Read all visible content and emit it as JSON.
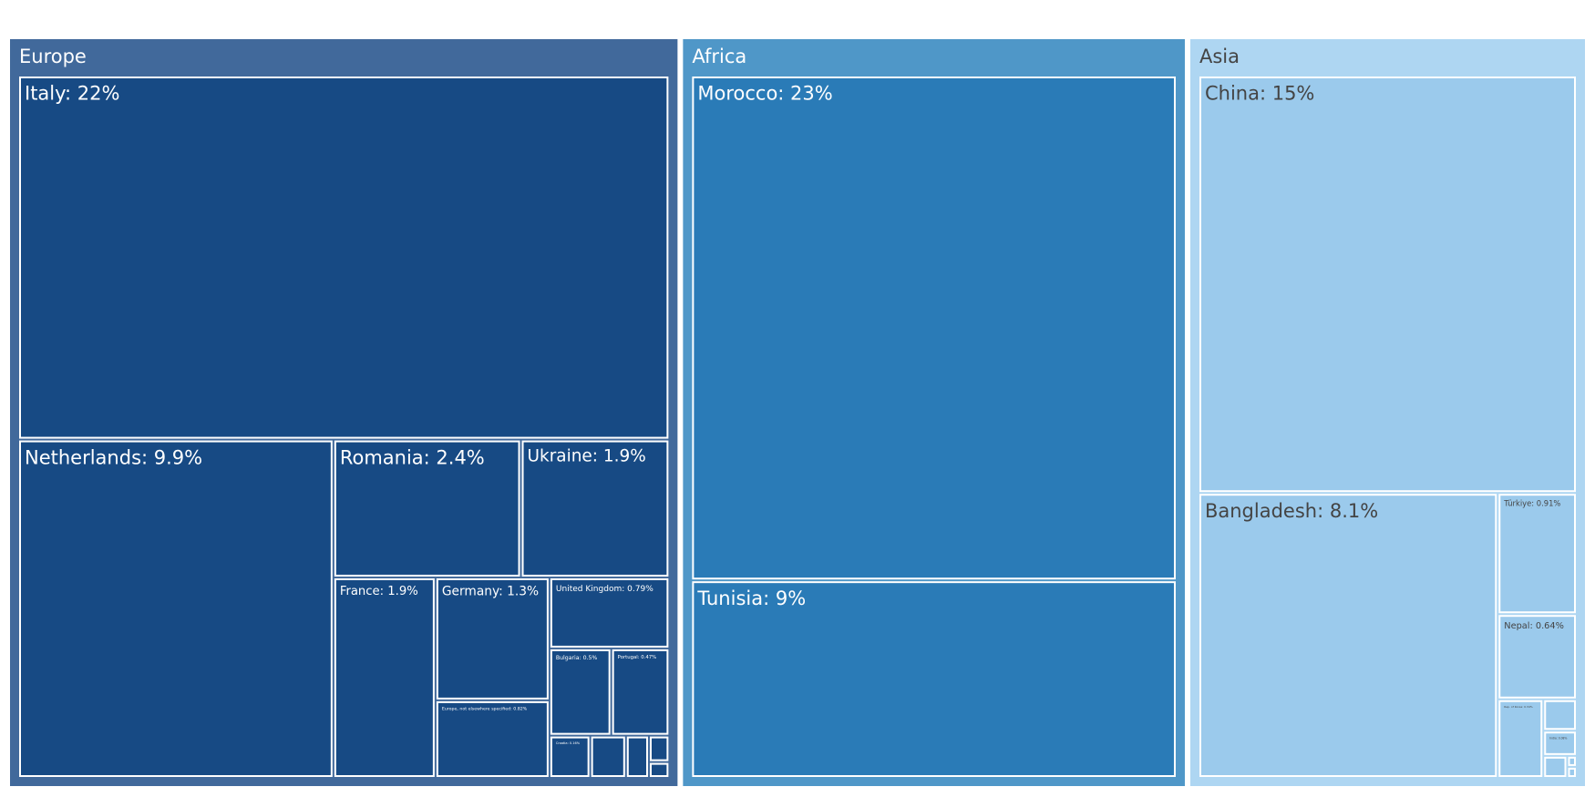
{
  "chart_data": {
    "type": "treemap",
    "groups": [
      {
        "name": "Europe",
        "header_color": "#41699b",
        "color": "#174a84",
        "text_color": "#ffffff",
        "values": [
          22,
          9.9,
          2.4,
          1.9,
          1.9,
          1.3,
          0.82,
          0.79,
          0.5,
          0.47,
          0.16,
          0.14,
          0.09,
          0.05,
          0.03
        ],
        "value_labels": [
          "Italy: 22%",
          "Netherlands: 9.9%",
          "Romania: 2.4%",
          "Ukraine: 1.9%",
          "France: 1.9%",
          "Germany: 1.3%",
          "Europe, not elsewhere specified: 0.82%",
          "United Kingdom: 0.79%",
          "Bulgaria: 0.5%",
          "Portugal: 0.47%",
          "Croatia: 0.16%",
          null,
          null,
          null,
          null
        ]
      },
      {
        "name": "Africa",
        "header_color": "#4f97c8",
        "color": "#2a7bb7",
        "text_color": "#ffffff",
        "values": [
          23,
          9
        ],
        "value_labels": [
          "Morocco: 23%",
          "Tunisia: 9%"
        ]
      },
      {
        "name": "Asia",
        "header_color": "#aed6f2",
        "color": "#9bcaec",
        "text_color": "#444444",
        "values": [
          15,
          8.1,
          0.91,
          0.64,
          0.34,
          0.1,
          0.08,
          0.05,
          0.01,
          0.01
        ],
        "value_labels": [
          "China: 15%",
          "Bangladesh: 8.1%",
          "Türkiye: 0.91%",
          "Nepal: 0.64%",
          "Rep. of Korea: 0.34%",
          null,
          "India: 0.08%",
          null,
          null,
          null
        ]
      }
    ]
  }
}
